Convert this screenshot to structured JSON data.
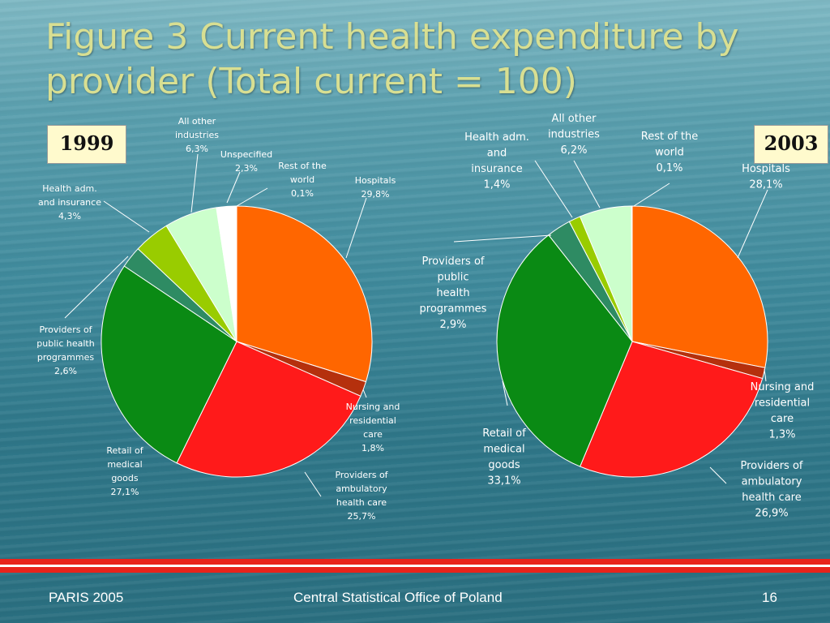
{
  "slide": {
    "title": "Figure 3 Current health expenditure by provider (Total current = 100)",
    "footer_left": "PARIS 2005",
    "footer_center": "Central Statistical Office of Poland",
    "footer_right": "16"
  },
  "chart_data": [
    {
      "type": "pie",
      "year_label": "1999",
      "slices": [
        {
          "label": "Hospitals",
          "value": 29.8,
          "value_text": "29,8%",
          "color": "#ff6600"
        },
        {
          "label": "Nursing and residential care",
          "value": 1.8,
          "value_text": "1,8%",
          "color": "#b5300d"
        },
        {
          "label": "Providers of ambulatory health care",
          "value": 25.7,
          "value_text": "25,7%",
          "color": "#ff1a1a"
        },
        {
          "label": "Retail of medical goods",
          "value": 27.1,
          "value_text": "27,1%",
          "color": "#0a8a14"
        },
        {
          "label": "Providers of public health programmes",
          "value": 2.6,
          "value_text": "2,6%",
          "color": "#2e8b63"
        },
        {
          "label": "Health adm. and insurance",
          "value": 4.3,
          "value_text": "4,3%",
          "color": "#99cc00"
        },
        {
          "label": "All other industries",
          "value": 6.3,
          "value_text": "6,3%",
          "color": "#ccffcc"
        },
        {
          "label": "Unspecified",
          "value": 2.3,
          "value_text": "2,3%",
          "color": "#ffffff"
        },
        {
          "label": "Rest of the world",
          "value": 0.1,
          "value_text": "0,1%",
          "color": "#d9e8ff"
        }
      ]
    },
    {
      "type": "pie",
      "year_label": "2003",
      "slices": [
        {
          "label": "Hospitals",
          "value": 28.1,
          "value_text": "28,1%",
          "color": "#ff6600"
        },
        {
          "label": "Nursing and residential care",
          "value": 1.3,
          "value_text": "1,3%",
          "color": "#b5300d"
        },
        {
          "label": "Providers of ambulatory health care",
          "value": 26.9,
          "value_text": "26,9%",
          "color": "#ff1a1a"
        },
        {
          "label": "Retail of medical goods",
          "value": 33.1,
          "value_text": "33,1%",
          "color": "#0a8a14"
        },
        {
          "label": "Providers of public health programmes",
          "value": 2.9,
          "value_text": "2,9%",
          "color": "#2e8b63"
        },
        {
          "label": "Health adm. and insurance",
          "value": 1.4,
          "value_text": "1,4%",
          "color": "#99cc00"
        },
        {
          "label": "All other industries",
          "value": 6.2,
          "value_text": "6,2%",
          "color": "#ccffcc"
        },
        {
          "label": "Rest of the world",
          "value": 0.1,
          "value_text": "0,1%",
          "color": "#d9e8ff"
        }
      ]
    }
  ]
}
